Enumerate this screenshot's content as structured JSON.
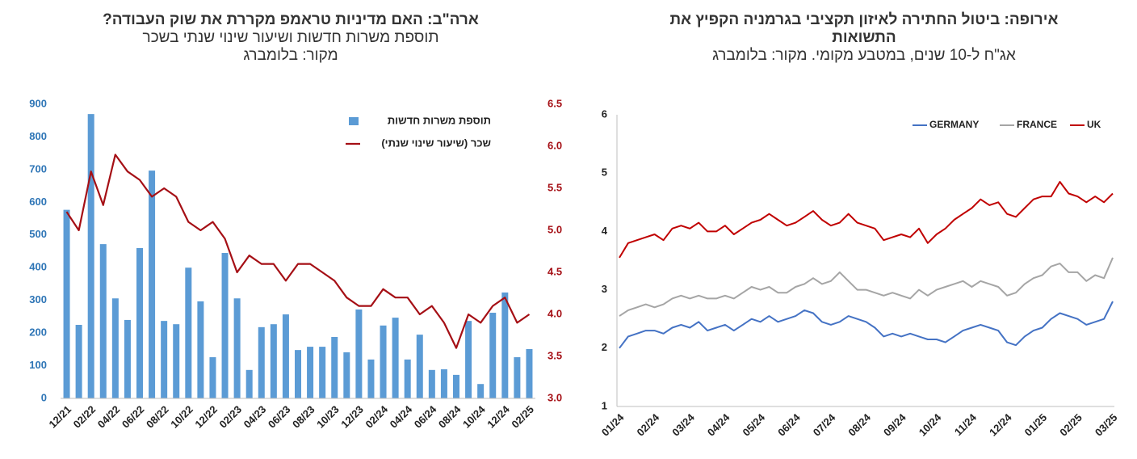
{
  "chart_data": [
    {
      "type": "bar-line",
      "title": "ארה\"ב: האם מדיניות טראמפ מקררת את שוק העבודה?",
      "subtitle": "תוספת משרות חדשות ושיעור שינוי שנתי בשכר",
      "source": "מקור: בלומברג",
      "categories": [
        "12/21",
        null,
        "02/22",
        null,
        "04/22",
        null,
        "06/22",
        null,
        "08/22",
        null,
        "10/22",
        null,
        "12/22",
        null,
        "02/23",
        null,
        "04/23",
        null,
        "06/23",
        null,
        "08/23",
        null,
        "10/23",
        null,
        "12/23",
        null,
        "02/24",
        null,
        "04/24",
        null,
        "06/24",
        null,
        "08/24",
        null,
        "10/24",
        null,
        "12/24",
        null,
        "02/25"
      ],
      "series": [
        {
          "name": "תוספת משרות חדשות",
          "color": "#5b9bd5",
          "kind": "bar",
          "values": [
            577,
            225,
            870,
            472,
            306,
            240,
            460,
            697,
            237,
            227,
            400,
            297,
            126,
            445,
            306,
            87,
            218,
            227,
            257,
            148,
            158,
            158,
            188,
            141,
            272,
            119,
            223,
            247,
            119,
            195,
            87,
            89,
            72,
            237,
            44,
            262,
            324,
            126,
            151
          ]
        },
        {
          "name": "שכר (שיעור שינוי שנתי)",
          "color": "#a50f15",
          "kind": "line",
          "axis": "y2",
          "values": [
            5.22,
            5.0,
            5.7,
            5.3,
            5.9,
            5.7,
            5.6,
            5.4,
            5.5,
            5.4,
            5.1,
            5.0,
            5.1,
            4.9,
            4.5,
            4.7,
            4.6,
            4.6,
            4.4,
            4.6,
            4.6,
            4.5,
            4.4,
            4.2,
            4.1,
            4.1,
            4.3,
            4.2,
            4.2,
            4.0,
            4.1,
            3.9,
            3.6,
            4.0,
            3.9,
            4.1,
            4.2,
            3.9,
            4.0
          ]
        }
      ],
      "ylim": [
        0,
        900
      ],
      "yticks": [
        0,
        100,
        200,
        300,
        400,
        500,
        600,
        700,
        800,
        900
      ],
      "y2lim": [
        3,
        6.5
      ],
      "y2ticks": [
        {
          "value": 3,
          "label": "3.0"
        },
        3.5,
        {
          "value": 4,
          "label": "4.0"
        },
        4.5,
        {
          "value": 5,
          "label": "5.0"
        },
        5.5,
        {
          "value": 6,
          "label": "6.0"
        },
        6.5
      ]
    },
    {
      "type": "line",
      "title": "אירופה: ביטול החתירה לאיזון תקציבי בגרמניה הקפיץ את התשואות",
      "subtitle": "אג\"ח ל-10 שנים, במטבע מקומי. מקור: בלומברג",
      "categories": [
        "01/24",
        null,
        null,
        null,
        "02/24",
        null,
        null,
        null,
        "03/24",
        null,
        null,
        null,
        "04/24",
        null,
        null,
        null,
        "05/24",
        null,
        null,
        null,
        "06/24",
        null,
        null,
        null,
        "07/24",
        null,
        null,
        null,
        "08/24",
        null,
        null,
        null,
        "09/24",
        null,
        null,
        null,
        "10/24",
        null,
        null,
        null,
        "11/24",
        null,
        null,
        null,
        "12/24",
        null,
        null,
        null,
        "01/25",
        null,
        null,
        null,
        "02/25",
        null,
        null,
        null,
        "03/25"
      ],
      "series": [
        {
          "name": "GERMANY",
          "color": "#4472c4",
          "values": [
            2.0,
            2.2,
            2.25,
            2.3,
            2.3,
            2.25,
            2.35,
            2.4,
            2.35,
            2.45,
            2.3,
            2.35,
            2.4,
            2.3,
            2.4,
            2.5,
            2.45,
            2.55,
            2.45,
            2.5,
            2.55,
            2.65,
            2.6,
            2.45,
            2.4,
            2.45,
            2.55,
            2.5,
            2.45,
            2.35,
            2.2,
            2.25,
            2.2,
            2.25,
            2.2,
            2.15,
            2.15,
            2.1,
            2.2,
            2.3,
            2.35,
            2.4,
            2.35,
            2.3,
            2.1,
            2.05,
            2.2,
            2.3,
            2.35,
            2.5,
            2.6,
            2.55,
            2.5,
            2.4,
            2.45,
            2.5,
            2.8
          ]
        },
        {
          "name": "FRANCE",
          "color": "#a5a5a5",
          "values": [
            2.55,
            2.65,
            2.7,
            2.75,
            2.7,
            2.75,
            2.85,
            2.9,
            2.85,
            2.9,
            2.85,
            2.85,
            2.9,
            2.85,
            2.95,
            3.05,
            3.0,
            3.05,
            2.95,
            2.95,
            3.05,
            3.1,
            3.2,
            3.1,
            3.15,
            3.3,
            3.15,
            3.0,
            3.0,
            2.95,
            2.9,
            2.95,
            2.9,
            2.85,
            3.0,
            2.9,
            3.0,
            3.05,
            3.1,
            3.15,
            3.05,
            3.15,
            3.1,
            3.05,
            2.9,
            2.95,
            3.1,
            3.2,
            3.25,
            3.4,
            3.45,
            3.3,
            3.3,
            3.15,
            3.25,
            3.2,
            3.55
          ]
        },
        {
          "name": "UK",
          "color": "#c00000",
          "values": [
            3.55,
            3.8,
            3.85,
            3.9,
            3.95,
            3.85,
            4.05,
            4.1,
            4.05,
            4.15,
            4.0,
            4.0,
            4.1,
            3.95,
            4.05,
            4.15,
            4.2,
            4.3,
            4.2,
            4.1,
            4.15,
            4.25,
            4.35,
            4.2,
            4.1,
            4.15,
            4.3,
            4.15,
            4.1,
            4.05,
            3.85,
            3.9,
            3.95,
            3.9,
            4.05,
            3.8,
            3.95,
            4.05,
            4.2,
            4.3,
            4.4,
            4.55,
            4.45,
            4.5,
            4.3,
            4.25,
            4.4,
            4.55,
            4.6,
            4.6,
            4.85,
            4.65,
            4.6,
            4.5,
            4.6,
            4.5,
            4.65
          ]
        }
      ],
      "ylim": [
        1,
        6
      ],
      "yticks": [
        1,
        2,
        3,
        4,
        5,
        6
      ]
    }
  ]
}
